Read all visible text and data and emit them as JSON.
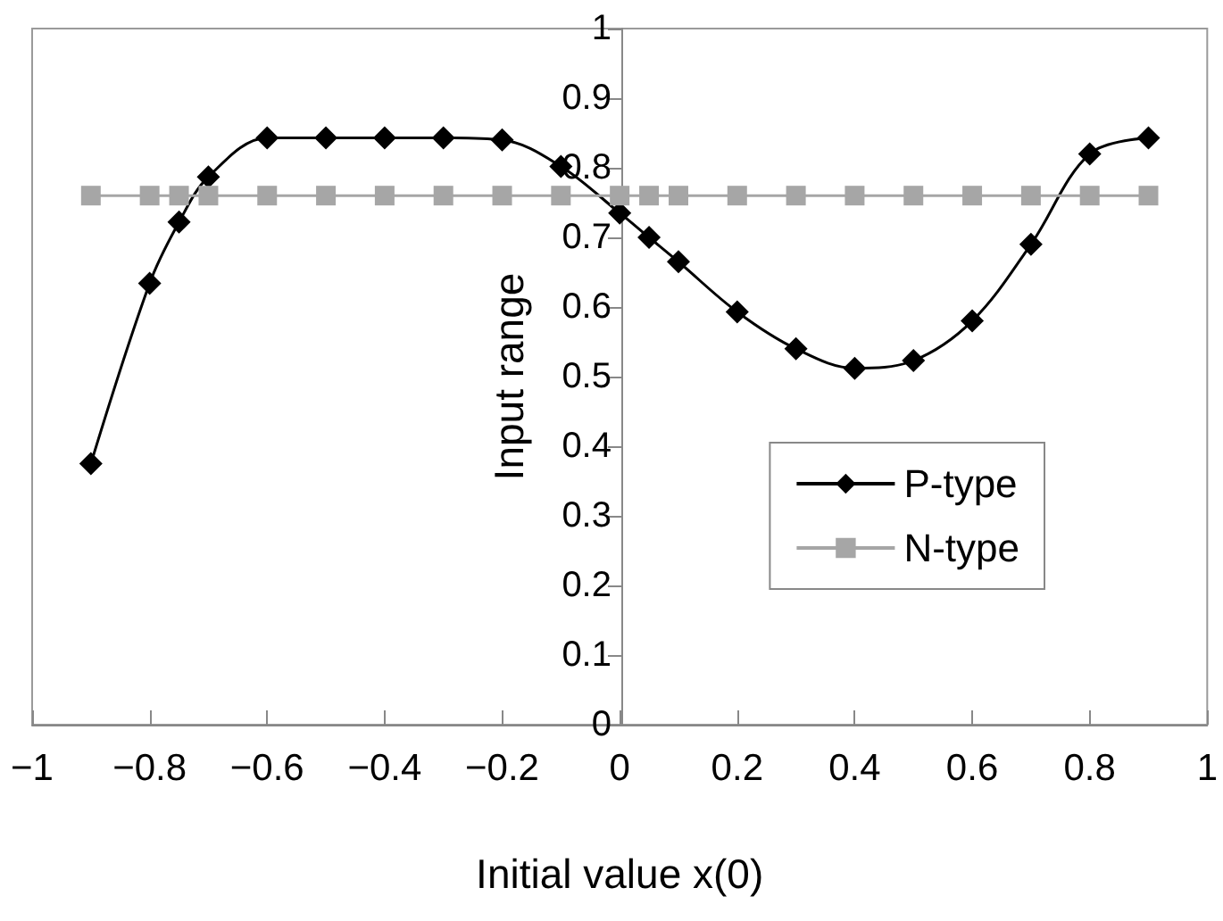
{
  "chart_data": {
    "type": "line",
    "xlabel": "Initial value x(0)",
    "ylabel": "Input range",
    "xlim": [
      -1,
      1
    ],
    "xticks": [
      -1,
      -0.8,
      -0.6,
      -0.4,
      -0.2,
      0,
      0.2,
      0.4,
      0.6,
      0.8,
      1
    ],
    "ylim": [
      0,
      1
    ],
    "yticks": [
      0,
      0.1,
      0.2,
      0.3,
      0.4,
      0.5,
      0.6,
      0.7,
      0.8,
      0.9,
      1
    ],
    "x": [
      -0.9,
      -0.8,
      -0.75,
      -0.7,
      -0.6,
      -0.5,
      -0.4,
      -0.3,
      -0.2,
      -0.1,
      0,
      0.05,
      0.1,
      0.2,
      0.3,
      0.4,
      0.5,
      0.6,
      0.7,
      0.8,
      0.9
    ],
    "series": [
      {
        "name": "P-type",
        "color": "#000000",
        "marker": "diamond",
        "values": [
          0.375,
          0.634,
          0.722,
          0.787,
          0.843,
          0.843,
          0.843,
          0.843,
          0.84,
          0.802,
          0.735,
          0.7,
          0.665,
          0.593,
          0.54,
          0.512,
          0.523,
          0.58,
          0.69,
          0.82,
          0.843
        ]
      },
      {
        "name": "N-type",
        "color": "#a6a6a6",
        "marker": "square",
        "values": [
          0.76,
          0.76,
          0.76,
          0.76,
          0.76,
          0.76,
          0.76,
          0.76,
          0.76,
          0.76,
          0.76,
          0.76,
          0.76,
          0.76,
          0.76,
          0.76,
          0.76,
          0.76,
          0.76,
          0.76,
          0.76
        ]
      }
    ],
    "legend": "right",
    "grid": false
  }
}
